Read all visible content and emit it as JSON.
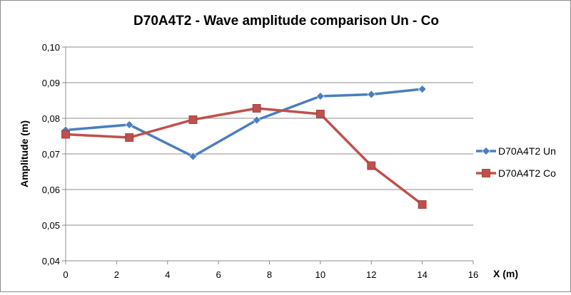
{
  "chart_data": {
    "type": "line",
    "title": "D70A4T2 - Wave amplitude comparison Un - Co",
    "xlabel": "X (m)",
    "ylabel": "Amplitude (m)",
    "xlim": [
      0,
      16
    ],
    "ylim": [
      0.04,
      0.1
    ],
    "x_ticks": [
      "0",
      "2",
      "4",
      "6",
      "8",
      "10",
      "12",
      "14",
      "16"
    ],
    "y_ticks": [
      "0,04",
      "0,05",
      "0,06",
      "0,07",
      "0,08",
      "0,09",
      "0,10"
    ],
    "grid": "horizontal",
    "legend_position": "right",
    "series": [
      {
        "name": "D70A4T2 Un",
        "color": "#4a7ebf",
        "marker": "diamond",
        "points": [
          [
            0,
            0.0767
          ],
          [
            2.5,
            0.0782
          ],
          [
            5,
            0.0693
          ],
          [
            7.5,
            0.0795
          ],
          [
            10,
            0.0862
          ],
          [
            12,
            0.0867
          ],
          [
            14,
            0.0882
          ]
        ]
      },
      {
        "name": "D70A4T2 Co",
        "color": "#c0504d",
        "marker": "square",
        "points": [
          [
            0,
            0.0755
          ],
          [
            2.5,
            0.0746
          ],
          [
            5,
            0.0796
          ],
          [
            7.5,
            0.0828
          ],
          [
            10,
            0.0812
          ],
          [
            12,
            0.0667
          ],
          [
            14,
            0.0558
          ]
        ]
      }
    ]
  }
}
